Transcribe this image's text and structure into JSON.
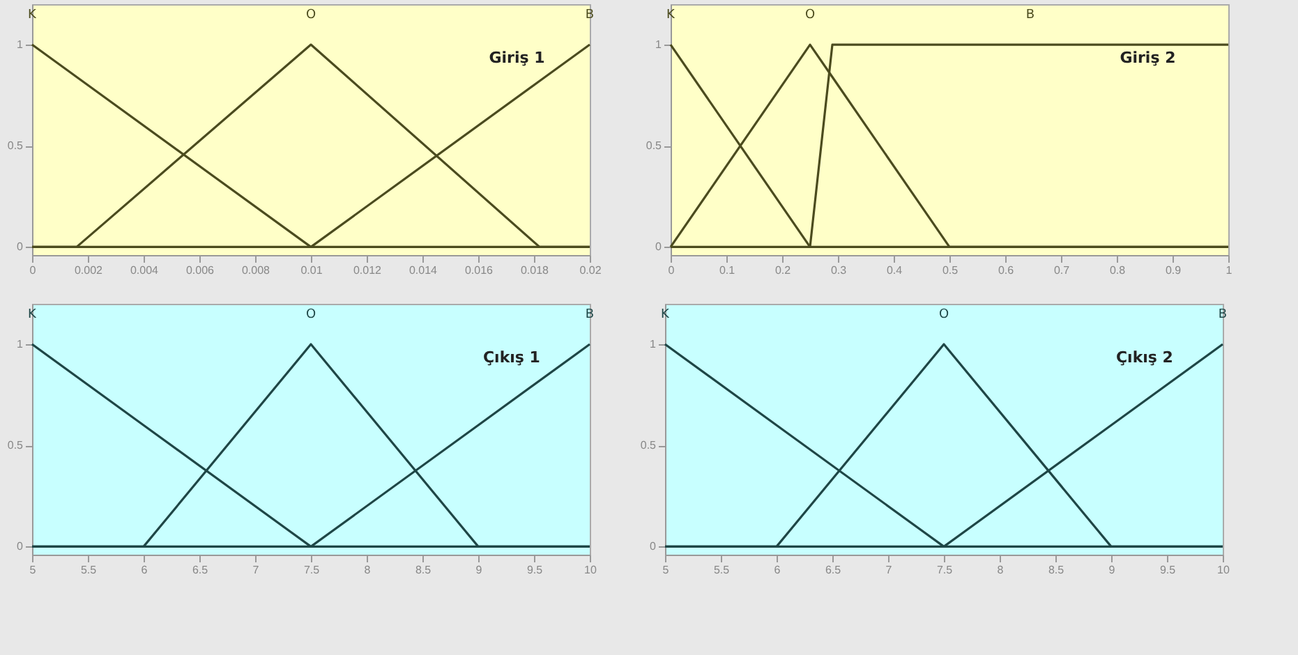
{
  "chart_data": [
    {
      "type": "line",
      "title": "Giriş 1",
      "xlim": [
        0,
        0.02
      ],
      "ylim": [
        -0.04,
        1.2
      ],
      "xticks": [
        0,
        0.002,
        0.004,
        0.006,
        0.008,
        0.01,
        0.012,
        0.014,
        0.016,
        0.018,
        0.02
      ],
      "yticks": [
        0,
        0.5,
        1
      ],
      "x": [
        0,
        0.0016,
        0.01,
        0.0182,
        0.02
      ],
      "series": [
        {
          "name": "K",
          "color": "#4b4b1e",
          "values": [
            1,
            0.84,
            0,
            0,
            0
          ]
        },
        {
          "name": "O",
          "color": "#4b4b1e",
          "values": [
            0,
            0,
            1,
            0,
            0
          ]
        },
        {
          "name": "B",
          "color": "#4b4b1e",
          "values": [
            0,
            0,
            0,
            0.82,
            1
          ]
        }
      ]
    },
    {
      "type": "line",
      "title": "Giriş 2",
      "xlim": [
        0,
        1
      ],
      "ylim": [
        -0.04,
        1.2
      ],
      "xticks": [
        0,
        0.1,
        0.2,
        0.3,
        0.4,
        0.5,
        0.6,
        0.7,
        0.8,
        0.9,
        1
      ],
      "yticks": [
        0,
        0.5,
        1
      ],
      "x": [
        0,
        0.25,
        0.29,
        0.5,
        1
      ],
      "series": [
        {
          "name": "K",
          "color": "#4b4b1e",
          "values": [
            1,
            0,
            0,
            0,
            0
          ]
        },
        {
          "name": "O",
          "color": "#4b4b1e",
          "values": [
            0,
            1,
            0.84,
            0,
            0
          ]
        },
        {
          "name": "B",
          "color": "#4b4b1e",
          "values": [
            0,
            0,
            1,
            1,
            1
          ]
        }
      ]
    },
    {
      "type": "line",
      "title": "Çıkış 1",
      "xlim": [
        5,
        10
      ],
      "ylim": [
        -0.04,
        1.2
      ],
      "xticks": [
        5,
        5.5,
        6,
        6.5,
        7,
        7.5,
        8,
        8.5,
        9,
        9.5,
        10
      ],
      "yticks": [
        0,
        0.5,
        1
      ],
      "x": [
        5,
        6,
        7.5,
        9,
        10
      ],
      "series": [
        {
          "name": "K",
          "color": "#1e4646",
          "values": [
            1,
            0.6,
            0,
            0,
            0
          ]
        },
        {
          "name": "O",
          "color": "#1e4646",
          "values": [
            0,
            0,
            1,
            0,
            0
          ]
        },
        {
          "name": "B",
          "color": "#1e4646",
          "values": [
            0,
            0,
            0,
            0.6,
            1
          ]
        }
      ]
    },
    {
      "type": "line",
      "title": "Çıkış 2",
      "xlim": [
        5,
        10
      ],
      "ylim": [
        -0.04,
        1.2
      ],
      "xticks": [
        5,
        5.5,
        6,
        6.5,
        7,
        7.5,
        8,
        8.5,
        9,
        9.5,
        10
      ],
      "yticks": [
        0,
        0.5,
        1
      ],
      "x": [
        5,
        6,
        7.5,
        9,
        10
      ],
      "series": [
        {
          "name": "K",
          "color": "#1e4646",
          "values": [
            1,
            0.6,
            0,
            0,
            0
          ]
        },
        {
          "name": "O",
          "color": "#1e4646",
          "values": [
            0,
            0,
            1,
            0,
            0
          ]
        },
        {
          "name": "B",
          "color": "#1e4646",
          "values": [
            0,
            0,
            0,
            0.6,
            1
          ]
        }
      ]
    }
  ]
}
